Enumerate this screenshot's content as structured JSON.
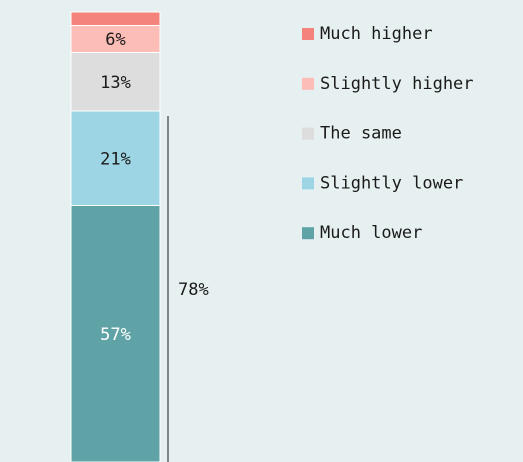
{
  "chart_data": {
    "type": "stacked-bar",
    "series": [
      {
        "name": "Much higher",
        "color": "#f4847b",
        "values": [
          3
        ],
        "value_labels": [
          null
        ]
      },
      {
        "name": "Slightly higher",
        "color": "#fdbdb7",
        "values": [
          6
        ],
        "value_labels": [
          "6%"
        ]
      },
      {
        "name": "The same",
        "color": "#dddddd",
        "values": [
          13
        ],
        "value_labels": [
          "13%"
        ]
      },
      {
        "name": "Slightly lower",
        "color": "#9dd5e4",
        "values": [
          21
        ],
        "value_labels": [
          "21%"
        ]
      },
      {
        "name": "Much lower",
        "color": "#5fa3a6",
        "values": [
          57
        ],
        "value_labels": [
          "57%"
        ]
      }
    ],
    "ylim": [
      0,
      100
    ],
    "annotations": [
      {
        "value": 78,
        "label": "78%"
      }
    ]
  }
}
